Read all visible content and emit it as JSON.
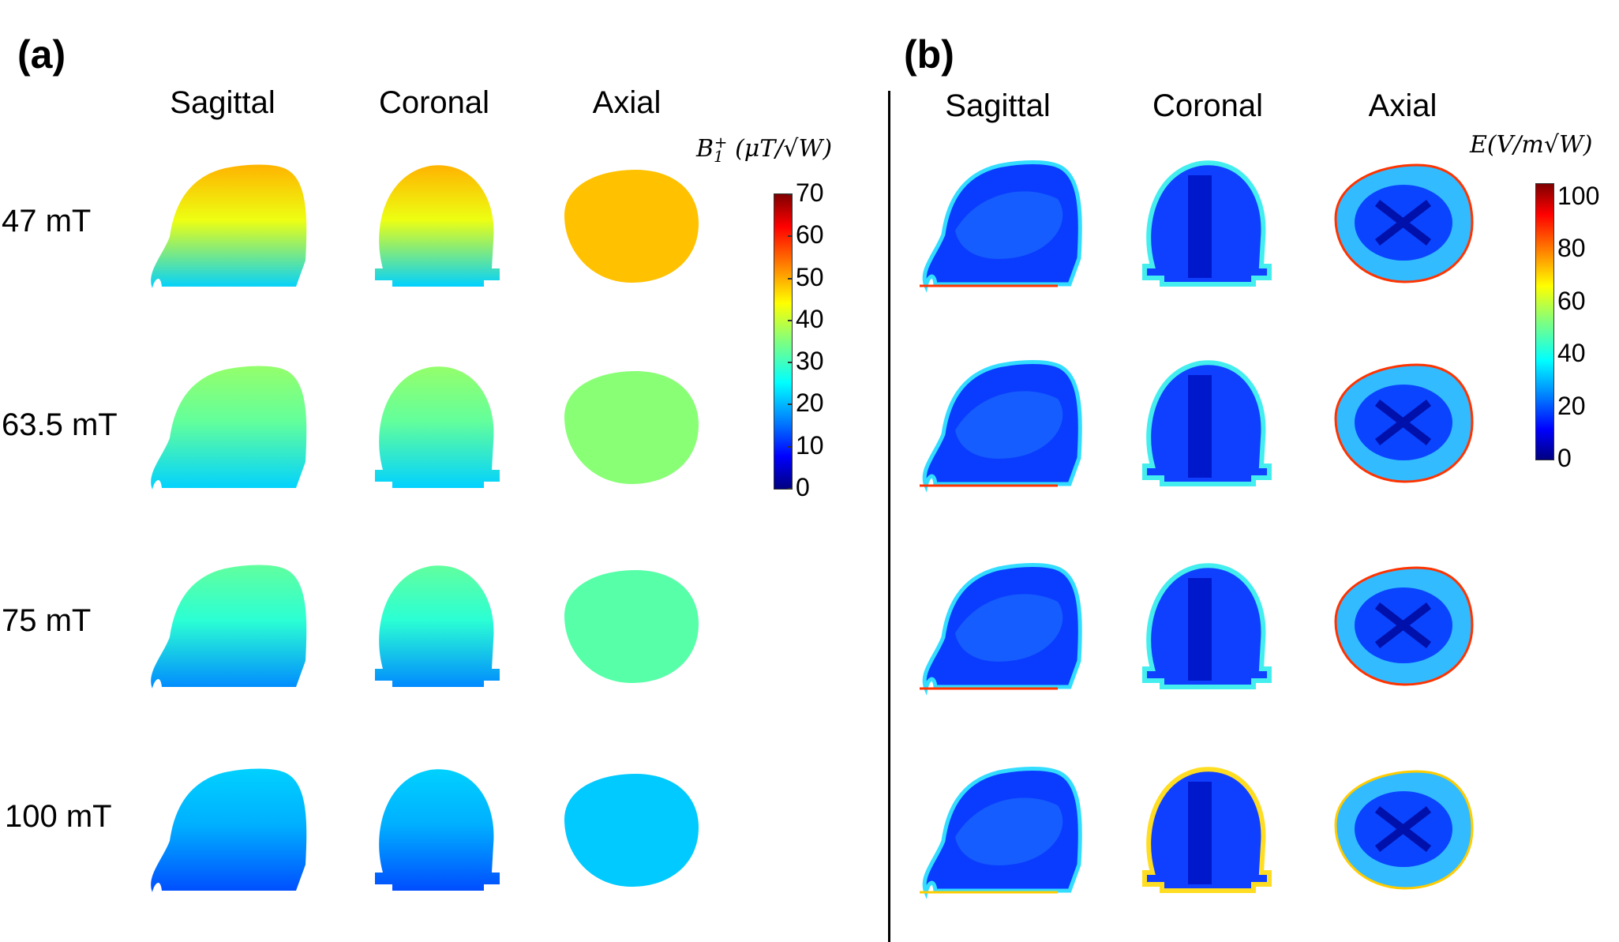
{
  "panel_a": {
    "label": "(a)",
    "columns": [
      "Sagittal",
      "Coronal",
      "Axial"
    ],
    "rows": [
      "47 mT",
      "63.5 mT",
      "75 mT",
      "100 mT"
    ],
    "colorbar": {
      "title_text": "B1+ (μT/√W)",
      "title_symbol": "B",
      "title_sub": "1",
      "title_sup": "+",
      "title_units": "(μT/√W)",
      "min": 0,
      "max": 70,
      "ticks": [
        "0",
        "10",
        "20",
        "30",
        "40",
        "50",
        "60",
        "70"
      ]
    },
    "field_color_values": [
      {
        "field": "47 mT",
        "top": 0.7,
        "bottom": 0.33
      },
      {
        "field": "63.5 mT",
        "top": 0.52,
        "bottom": 0.33
      },
      {
        "field": "75 mT",
        "top": 0.47,
        "bottom": 0.26
      },
      {
        "field": "100 mT",
        "top": 0.33,
        "bottom": 0.2
      }
    ]
  },
  "panel_b": {
    "label": "(b)",
    "columns": [
      "Sagittal",
      "Coronal",
      "Axial"
    ],
    "colorbar": {
      "title_text": "E(V/m√W)",
      "title_symbol": "E",
      "title_units": "(V/m√W)",
      "min": 0,
      "max": 105,
      "ticks": [
        "0",
        "20",
        "40",
        "60",
        "80",
        "100"
      ]
    }
  },
  "colors": {
    "jet": [
      "#00007f",
      "#0000ff",
      "#007fff",
      "#00ffff",
      "#7fff7f",
      "#ffff00",
      "#ff7f00",
      "#ff0000",
      "#7f0000"
    ]
  }
}
